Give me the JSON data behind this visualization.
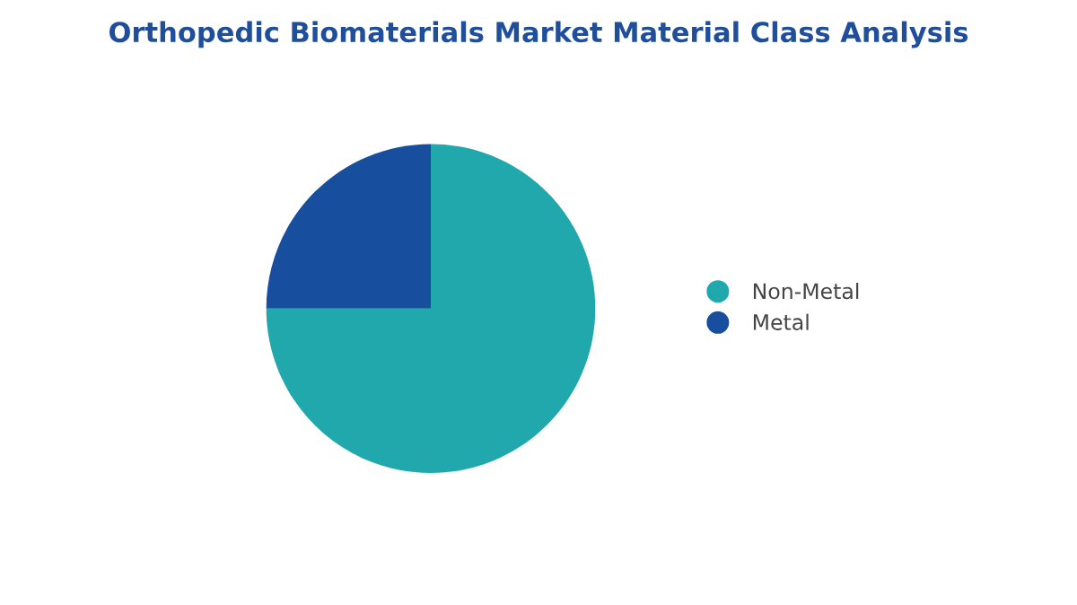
{
  "chart_data": {
    "type": "pie",
    "title": "Orthopedic Biomaterials Market Material Class Analysis",
    "categories": [
      "Non-Metal",
      "Metal"
    ],
    "values": [
      75,
      25
    ],
    "colors": [
      "#20a8ac",
      "#174e9e"
    ],
    "legend": "right"
  }
}
